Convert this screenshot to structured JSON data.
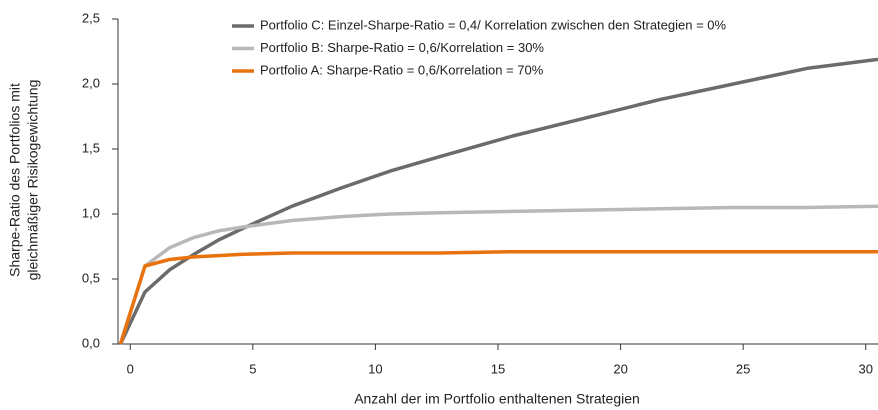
{
  "chart_data": {
    "type": "line",
    "xlabel": "Anzahl der im Portfolio enthaltenen Strategien",
    "ylabel": [
      "Sharpe-Ratio des Portfolios mit",
      "gleichmäßiger Risikogewichtung"
    ],
    "x": [
      -0.4,
      0.6,
      1.6,
      2.6,
      3.6,
      4.6,
      6.6,
      8.6,
      10.6,
      12.6,
      15.6,
      18.6,
      21.6,
      24.6,
      27.6,
      30.5
    ],
    "series": [
      {
        "name": "Portfolio C: Einzel-Sharpe-Ratio = 0,4/ Korrelation zwischen den Strategien = 0%",
        "color": "#6b6b6b",
        "values": [
          0,
          0.4,
          0.57,
          0.69,
          0.8,
          0.89,
          1.06,
          1.2,
          1.33,
          1.44,
          1.6,
          1.74,
          1.88,
          2.0,
          2.12,
          2.19
        ]
      },
      {
        "name": "Portfolio B: Sharpe-Ratio = 0,6/Korrelation = 30%",
        "color": "#b8b8b8",
        "values": [
          0,
          0.6,
          0.74,
          0.82,
          0.87,
          0.9,
          0.95,
          0.98,
          1.0,
          1.01,
          1.02,
          1.03,
          1.04,
          1.05,
          1.05,
          1.06
        ]
      },
      {
        "name": "Portfolio A: Sharpe-Ratio = 0,6/Korrelation = 70%",
        "color": "#e8730e",
        "values": [
          0,
          0.6,
          0.65,
          0.67,
          0.68,
          0.69,
          0.7,
          0.7,
          0.7,
          0.7,
          0.71,
          0.71,
          0.71,
          0.71,
          0.71,
          0.71
        ]
      }
    ],
    "xlim": [
      -0.5,
      30.5
    ],
    "xticks": [
      0,
      5,
      10,
      15,
      20,
      25,
      30
    ],
    "ylim": [
      0,
      2.5
    ],
    "yticks": [
      {
        "value": 0,
        "label": "0,0"
      },
      {
        "value": 0.5,
        "label": "0,5"
      },
      {
        "value": 1,
        "label": "1,0"
      },
      {
        "value": 1.5,
        "label": "1,5"
      },
      {
        "value": 2,
        "label": "2,0"
      },
      {
        "value": 2.5,
        "label": "2,5"
      }
    ],
    "legend": "top"
  }
}
